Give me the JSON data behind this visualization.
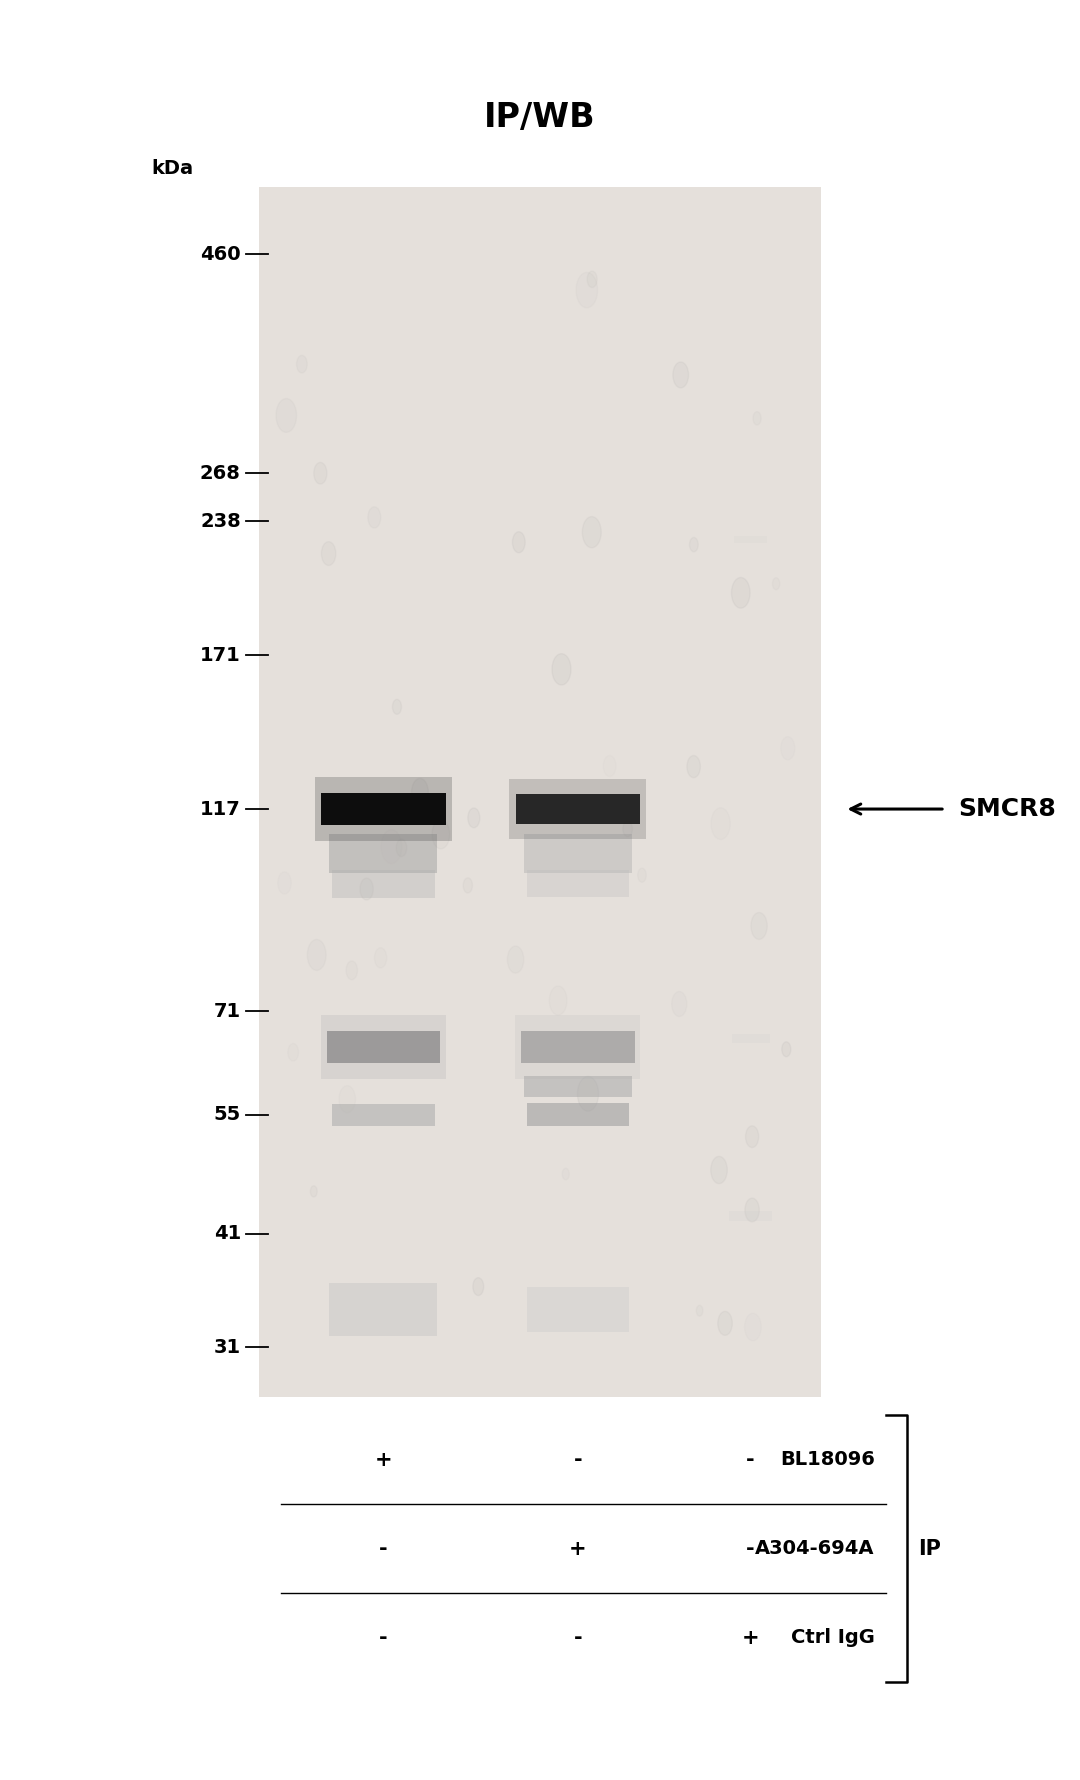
{
  "title": "IP/WB",
  "title_fontsize": 24,
  "gel_bg_color": "#e8e4e0",
  "outer_bg": "#ffffff",
  "mw_markers": [
    460,
    268,
    238,
    171,
    117,
    71,
    55,
    41,
    31
  ],
  "mw_label": "kDa",
  "smcr8_label": "SMCR8",
  "smcr8_mw": 117,
  "row_labels": [
    "BL18096",
    "A304-694A",
    "Ctrl IgG"
  ],
  "ip_label": "IP",
  "table_rows": [
    [
      "+",
      "-",
      "-"
    ],
    [
      "-",
      "+",
      "-"
    ],
    [
      "-",
      "-",
      "+"
    ]
  ]
}
